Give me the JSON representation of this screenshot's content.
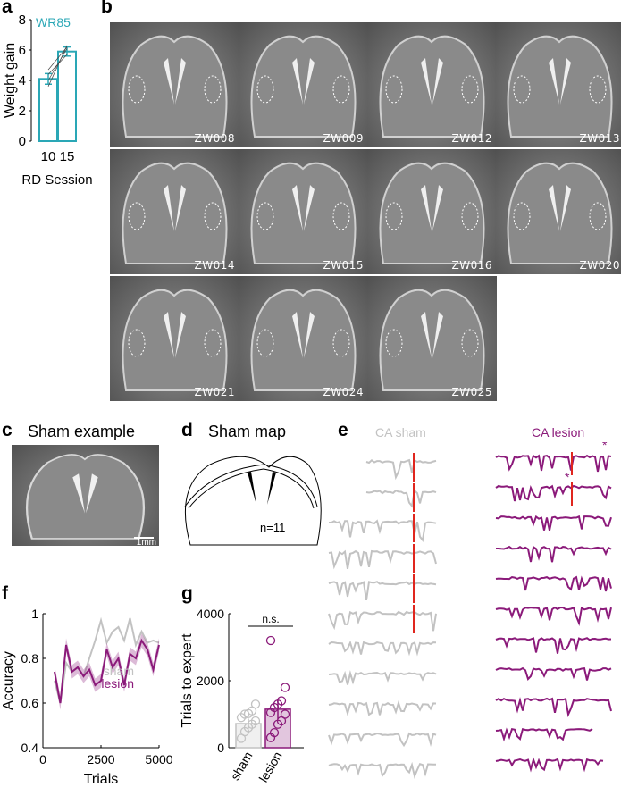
{
  "panels": {
    "a": {
      "label": "a",
      "legend": "WR85"
    },
    "b": {
      "label": "b"
    },
    "c": {
      "label": "c",
      "title": "Sham example",
      "scale_bar": "1mm"
    },
    "d": {
      "label": "d",
      "title": "Sham map",
      "n_label": "n=11"
    },
    "e": {
      "label": "e",
      "sham_title": "CA sham",
      "lesion_title": "CA lesion",
      "marker": "*"
    },
    "f": {
      "label": "f",
      "legend_sham": "sham",
      "legend_lesion": "lesion"
    },
    "g": {
      "label": "g",
      "significance": "n.s."
    }
  },
  "sections": [
    "ZW008",
    "ZW009",
    "ZW012",
    "ZW013",
    "ZW014",
    "ZW015",
    "ZW016",
    "ZW020",
    "ZW021",
    "ZW024",
    "ZW025"
  ],
  "colors": {
    "teal": "#2aa7b6",
    "purple": "#8b1a7a",
    "sham_gray": "#c2c2c2",
    "red": "#e0261e"
  },
  "chart_data": [
    {
      "id": "a",
      "type": "bar",
      "categories": [
        "10",
        "15"
      ],
      "values": [
        4.1,
        5.9
      ],
      "errors": [
        0.35,
        0.3
      ],
      "paired_lines": [
        [
          3.6,
          6.3
        ],
        [
          4.0,
          6.1
        ],
        [
          4.4,
          5.7
        ],
        [
          4.7,
          6.2
        ]
      ],
      "xlabel": "RD Session",
      "ylabel": "Weight gain",
      "ylim": [
        0,
        8
      ],
      "yticks": [
        "0",
        "2",
        "4",
        "6",
        "8"
      ]
    },
    {
      "id": "f",
      "type": "line",
      "xlabel": "Trials",
      "ylabel": "Accuracy",
      "xlim": [
        0,
        5000
      ],
      "ylim": [
        0.4,
        1.0
      ],
      "xticks": [
        "0",
        "2500",
        "5000"
      ],
      "yticks": [
        "0.4",
        "0.6",
        "0.8",
        "1"
      ],
      "x": [
        500,
        750,
        1000,
        1250,
        1500,
        1750,
        2000,
        2250,
        2500,
        2750,
        3000,
        3250,
        3500,
        3750,
        4000,
        4250,
        4500,
        4750,
        5000
      ],
      "series": [
        {
          "name": "sham",
          "values": [
            0.7,
            0.6,
            0.78,
            0.74,
            0.76,
            0.72,
            0.8,
            0.88,
            0.97,
            0.87,
            0.92,
            0.94,
            0.88,
            0.98,
            0.86,
            0.92,
            0.87,
            0.88,
            0.87
          ]
        },
        {
          "name": "lesion",
          "values": [
            0.74,
            0.6,
            0.86,
            0.74,
            0.76,
            0.72,
            0.75,
            0.68,
            0.7,
            0.84,
            0.76,
            0.8,
            0.68,
            0.82,
            0.8,
            0.88,
            0.84,
            0.75,
            0.86
          ]
        }
      ]
    },
    {
      "id": "g",
      "type": "bar",
      "categories": [
        "sham",
        "lesion"
      ],
      "values": [
        720,
        1150
      ],
      "errors": [
        150,
        300
      ],
      "points": [
        [
          280,
          480,
          600,
          700,
          800,
          900,
          1000,
          1020,
          1100,
          1300
        ],
        [
          300,
          450,
          700,
          800,
          1000,
          1050,
          1200,
          1300,
          1400,
          1800,
          3200
        ]
      ],
      "ylabel": "Trials to expert",
      "ylim": [
        0,
        4000
      ],
      "yticks": [
        "0",
        "2000",
        "4000"
      ]
    }
  ]
}
